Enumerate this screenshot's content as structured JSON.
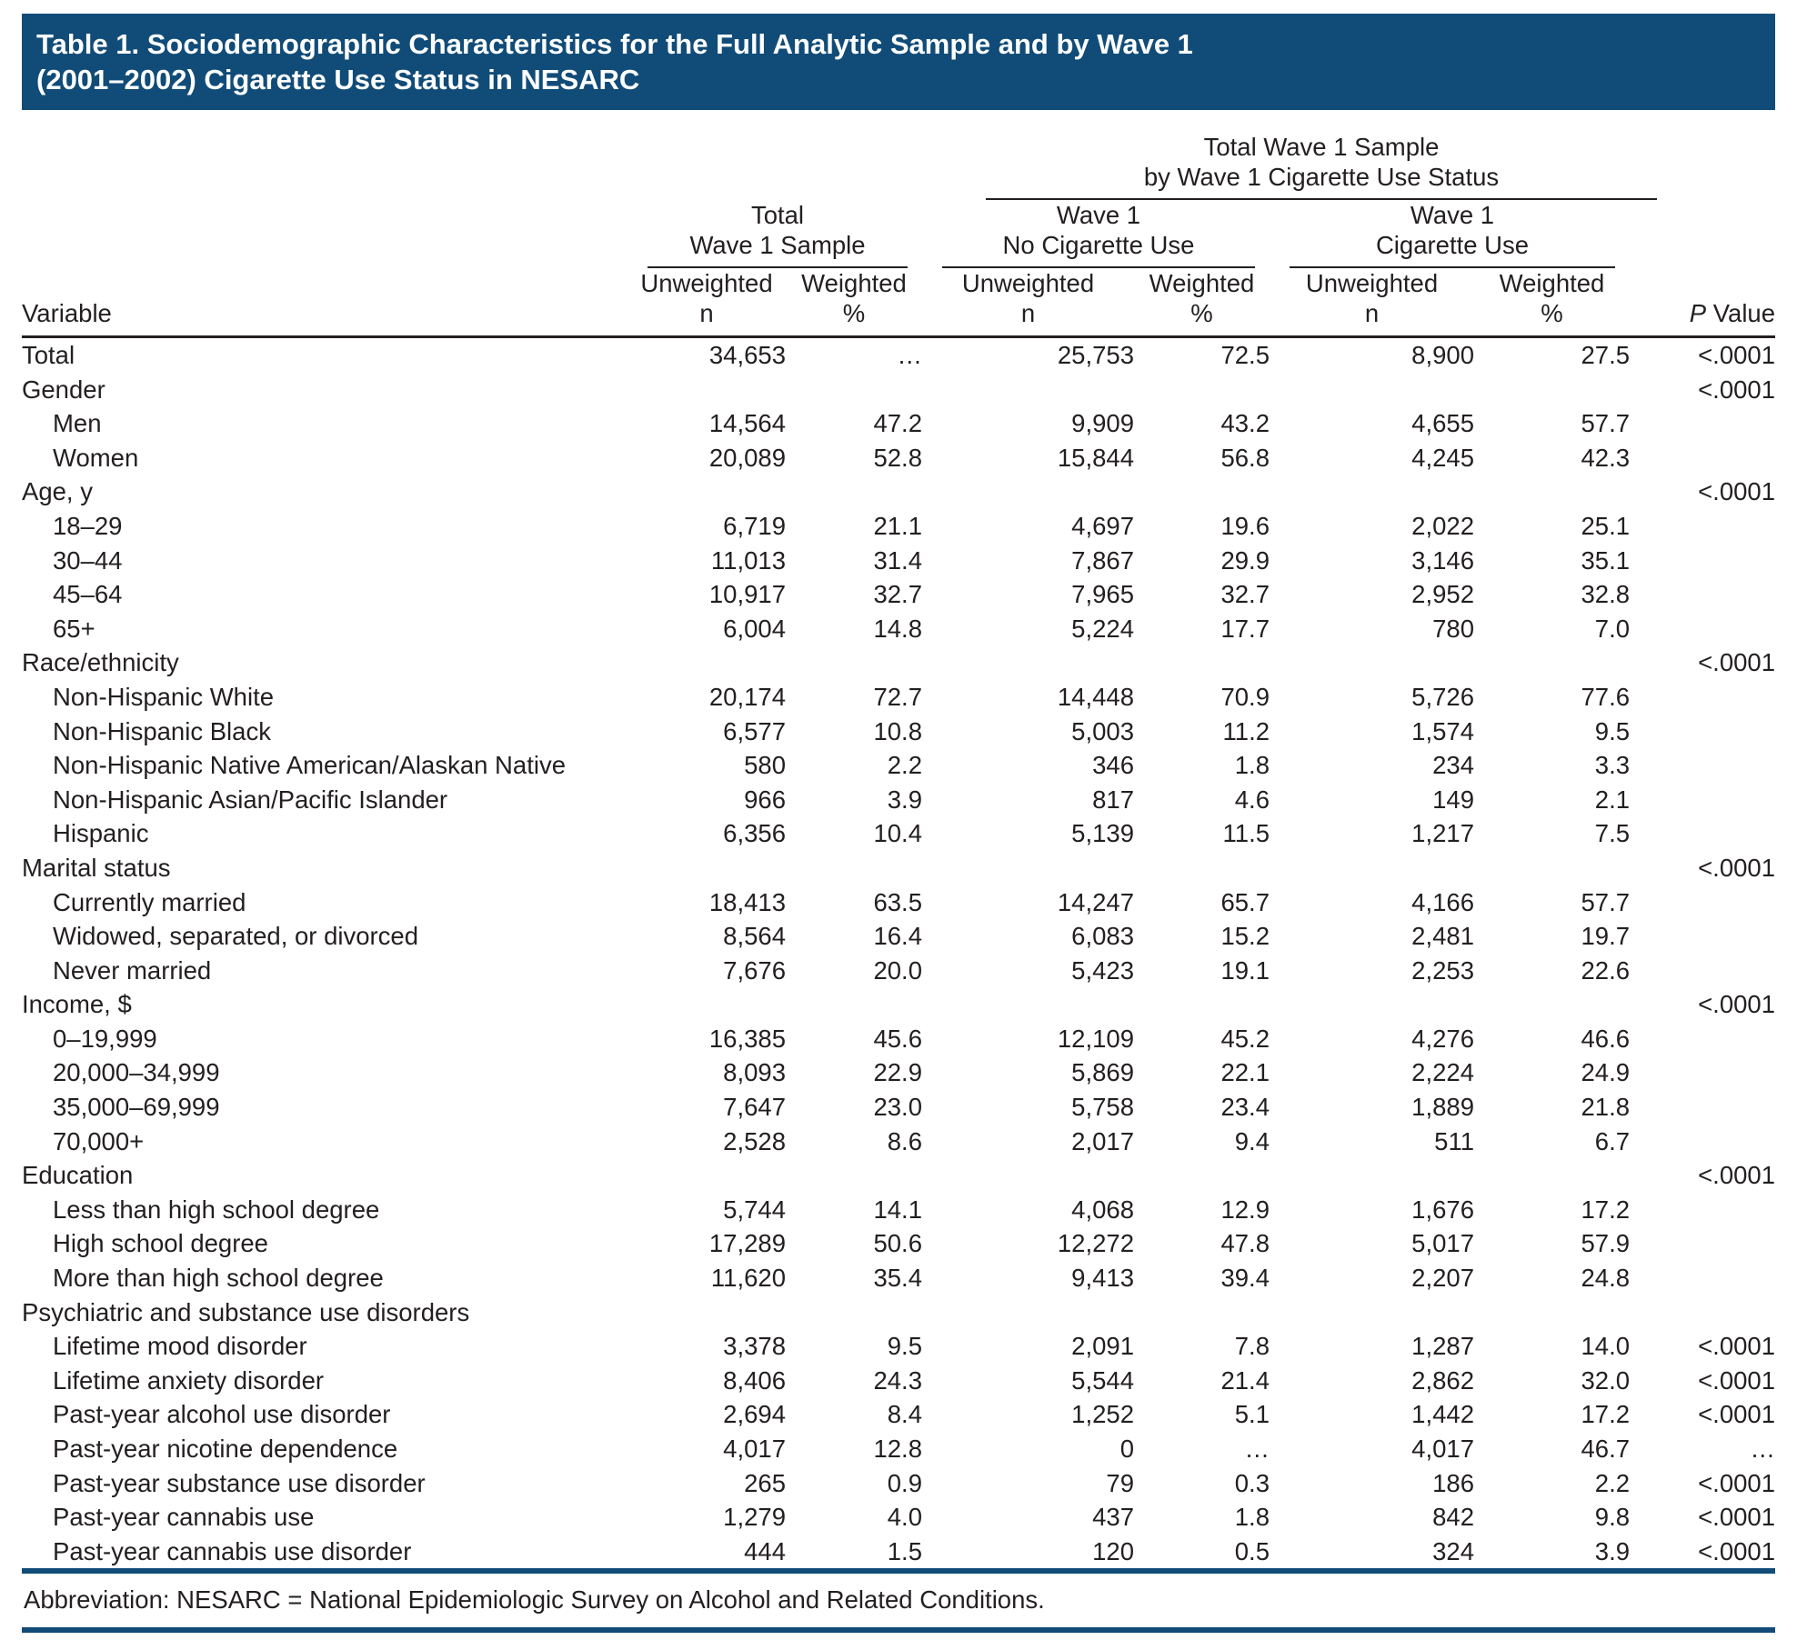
{
  "colors": {
    "navy": "#114c78",
    "ink": "#231f20"
  },
  "title": {
    "line1": "Table 1. Sociodemographic Characteristics for the Full Analytic Sample and by Wave 1",
    "line2": "(2001–2002) Cigarette Use Status in NESARC"
  },
  "header": {
    "top_group": {
      "line1": "Total Wave 1 Sample",
      "line2": "by Wave 1 Cigarette Use Status"
    },
    "groups": [
      {
        "line1": "Total",
        "line2": "Wave 1 Sample"
      },
      {
        "line1": "Wave 1",
        "line2": "No Cigarette Use"
      },
      {
        "line1": "Wave 1",
        "line2": "Cigarette Use"
      }
    ],
    "variable_label": "Variable",
    "cols": [
      {
        "line1": "Unweighted",
        "line2": "n"
      },
      {
        "line1": "Weighted",
        "line2": "%"
      },
      {
        "line1": "Unweighted",
        "line2": "n"
      },
      {
        "line1": "Weighted",
        "line2": "%"
      },
      {
        "line1": "Unweighted",
        "line2": "n"
      },
      {
        "line1": "Weighted",
        "line2": "%"
      }
    ],
    "p_label": {
      "italic": "P",
      "rest": " Value"
    }
  },
  "rows": [
    {
      "label": "Total",
      "indent": 0,
      "values": [
        "34,653",
        "…",
        "25,753",
        "72.5",
        "8,900",
        "27.5",
        "<.0001"
      ]
    },
    {
      "label": "Gender",
      "indent": 0,
      "values": [
        "",
        "",
        "",
        "",
        "",
        "",
        "<.0001"
      ]
    },
    {
      "label": "Men",
      "indent": 1,
      "values": [
        "14,564",
        "47.2",
        "9,909",
        "43.2",
        "4,655",
        "57.7",
        ""
      ]
    },
    {
      "label": "Women",
      "indent": 1,
      "values": [
        "20,089",
        "52.8",
        "15,844",
        "56.8",
        "4,245",
        "42.3",
        ""
      ]
    },
    {
      "label": "Age, y",
      "indent": 0,
      "values": [
        "",
        "",
        "",
        "",
        "",
        "",
        "<.0001"
      ]
    },
    {
      "label": "18–29",
      "indent": 1,
      "values": [
        "6,719",
        "21.1",
        "4,697",
        "19.6",
        "2,022",
        "25.1",
        ""
      ]
    },
    {
      "label": "30–44",
      "indent": 1,
      "values": [
        "11,013",
        "31.4",
        "7,867",
        "29.9",
        "3,146",
        "35.1",
        ""
      ]
    },
    {
      "label": "45–64",
      "indent": 1,
      "values": [
        "10,917",
        "32.7",
        "7,965",
        "32.7",
        "2,952",
        "32.8",
        ""
      ]
    },
    {
      "label": "65+",
      "indent": 1,
      "values": [
        "6,004",
        "14.8",
        "5,224",
        "17.7",
        "780",
        "7.0",
        ""
      ]
    },
    {
      "label": "Race/ethnicity",
      "indent": 0,
      "values": [
        "",
        "",
        "",
        "",
        "",
        "",
        "<.0001"
      ]
    },
    {
      "label": "Non-Hispanic White",
      "indent": 1,
      "values": [
        "20,174",
        "72.7",
        "14,448",
        "70.9",
        "5,726",
        "77.6",
        ""
      ]
    },
    {
      "label": "Non-Hispanic Black",
      "indent": 1,
      "values": [
        "6,577",
        "10.8",
        "5,003",
        "11.2",
        "1,574",
        "9.5",
        ""
      ]
    },
    {
      "label": "Non-Hispanic Native American/Alaskan Native",
      "indent": 1,
      "values": [
        "580",
        "2.2",
        "346",
        "1.8",
        "234",
        "3.3",
        ""
      ]
    },
    {
      "label": "Non-Hispanic Asian/Pacific Islander",
      "indent": 1,
      "values": [
        "966",
        "3.9",
        "817",
        "4.6",
        "149",
        "2.1",
        ""
      ]
    },
    {
      "label": "Hispanic",
      "indent": 1,
      "values": [
        "6,356",
        "10.4",
        "5,139",
        "11.5",
        "1,217",
        "7.5",
        ""
      ]
    },
    {
      "label": "Marital status",
      "indent": 0,
      "values": [
        "",
        "",
        "",
        "",
        "",
        "",
        "<.0001"
      ]
    },
    {
      "label": "Currently married",
      "indent": 1,
      "values": [
        "18,413",
        "63.5",
        "14,247",
        "65.7",
        "4,166",
        "57.7",
        ""
      ]
    },
    {
      "label": "Widowed, separated, or divorced",
      "indent": 1,
      "values": [
        "8,564",
        "16.4",
        "6,083",
        "15.2",
        "2,481",
        "19.7",
        ""
      ]
    },
    {
      "label": "Never married",
      "indent": 1,
      "values": [
        "7,676",
        "20.0",
        "5,423",
        "19.1",
        "2,253",
        "22.6",
        ""
      ]
    },
    {
      "label": "Income, $",
      "indent": 0,
      "values": [
        "",
        "",
        "",
        "",
        "",
        "",
        "<.0001"
      ]
    },
    {
      "label": "0–19,999",
      "indent": 1,
      "values": [
        "16,385",
        "45.6",
        "12,109",
        "45.2",
        "4,276",
        "46.6",
        ""
      ]
    },
    {
      "label": "20,000–34,999",
      "indent": 1,
      "values": [
        "8,093",
        "22.9",
        "5,869",
        "22.1",
        "2,224",
        "24.9",
        ""
      ]
    },
    {
      "label": "35,000–69,999",
      "indent": 1,
      "values": [
        "7,647",
        "23.0",
        "5,758",
        "23.4",
        "1,889",
        "21.8",
        ""
      ]
    },
    {
      "label": "70,000+",
      "indent": 1,
      "values": [
        "2,528",
        "8.6",
        "2,017",
        "9.4",
        "511",
        "6.7",
        ""
      ]
    },
    {
      "label": "Education",
      "indent": 0,
      "values": [
        "",
        "",
        "",
        "",
        "",
        "",
        "<.0001"
      ]
    },
    {
      "label": "Less than high school degree",
      "indent": 1,
      "values": [
        "5,744",
        "14.1",
        "4,068",
        "12.9",
        "1,676",
        "17.2",
        ""
      ]
    },
    {
      "label": "High school degree",
      "indent": 1,
      "values": [
        "17,289",
        "50.6",
        "12,272",
        "47.8",
        "5,017",
        "57.9",
        ""
      ]
    },
    {
      "label": "More than high school degree",
      "indent": 1,
      "values": [
        "11,620",
        "35.4",
        "9,413",
        "39.4",
        "2,207",
        "24.8",
        ""
      ]
    },
    {
      "label": "Psychiatric and substance use disorders",
      "indent": 0,
      "values": [
        "",
        "",
        "",
        "",
        "",
        "",
        ""
      ]
    },
    {
      "label": "Lifetime mood disorder",
      "indent": 1,
      "values": [
        "3,378",
        "9.5",
        "2,091",
        "7.8",
        "1,287",
        "14.0",
        "<.0001"
      ]
    },
    {
      "label": "Lifetime anxiety disorder",
      "indent": 1,
      "values": [
        "8,406",
        "24.3",
        "5,544",
        "21.4",
        "2,862",
        "32.0",
        "<.0001"
      ]
    },
    {
      "label": "Past-year alcohol use disorder",
      "indent": 1,
      "values": [
        "2,694",
        "8.4",
        "1,252",
        "5.1",
        "1,442",
        "17.2",
        "<.0001"
      ]
    },
    {
      "label": "Past-year nicotine dependence",
      "indent": 1,
      "values": [
        "4,017",
        "12.8",
        "0",
        "…",
        "4,017",
        "46.7",
        "…"
      ]
    },
    {
      "label": "Past-year substance use disorder",
      "indent": 1,
      "values": [
        "265",
        "0.9",
        "79",
        "0.3",
        "186",
        "2.2",
        "<.0001"
      ]
    },
    {
      "label": "Past-year cannabis use",
      "indent": 1,
      "values": [
        "1,279",
        "4.0",
        "437",
        "1.8",
        "842",
        "9.8",
        "<.0001"
      ]
    },
    {
      "label": "Past-year cannabis use disorder",
      "indent": 1,
      "values": [
        "444",
        "1.5",
        "120",
        "0.5",
        "324",
        "3.9",
        "<.0001"
      ]
    }
  ],
  "footnote": "Abbreviation: NESARC = National Epidemiologic Survey on Alcohol and Related Conditions."
}
